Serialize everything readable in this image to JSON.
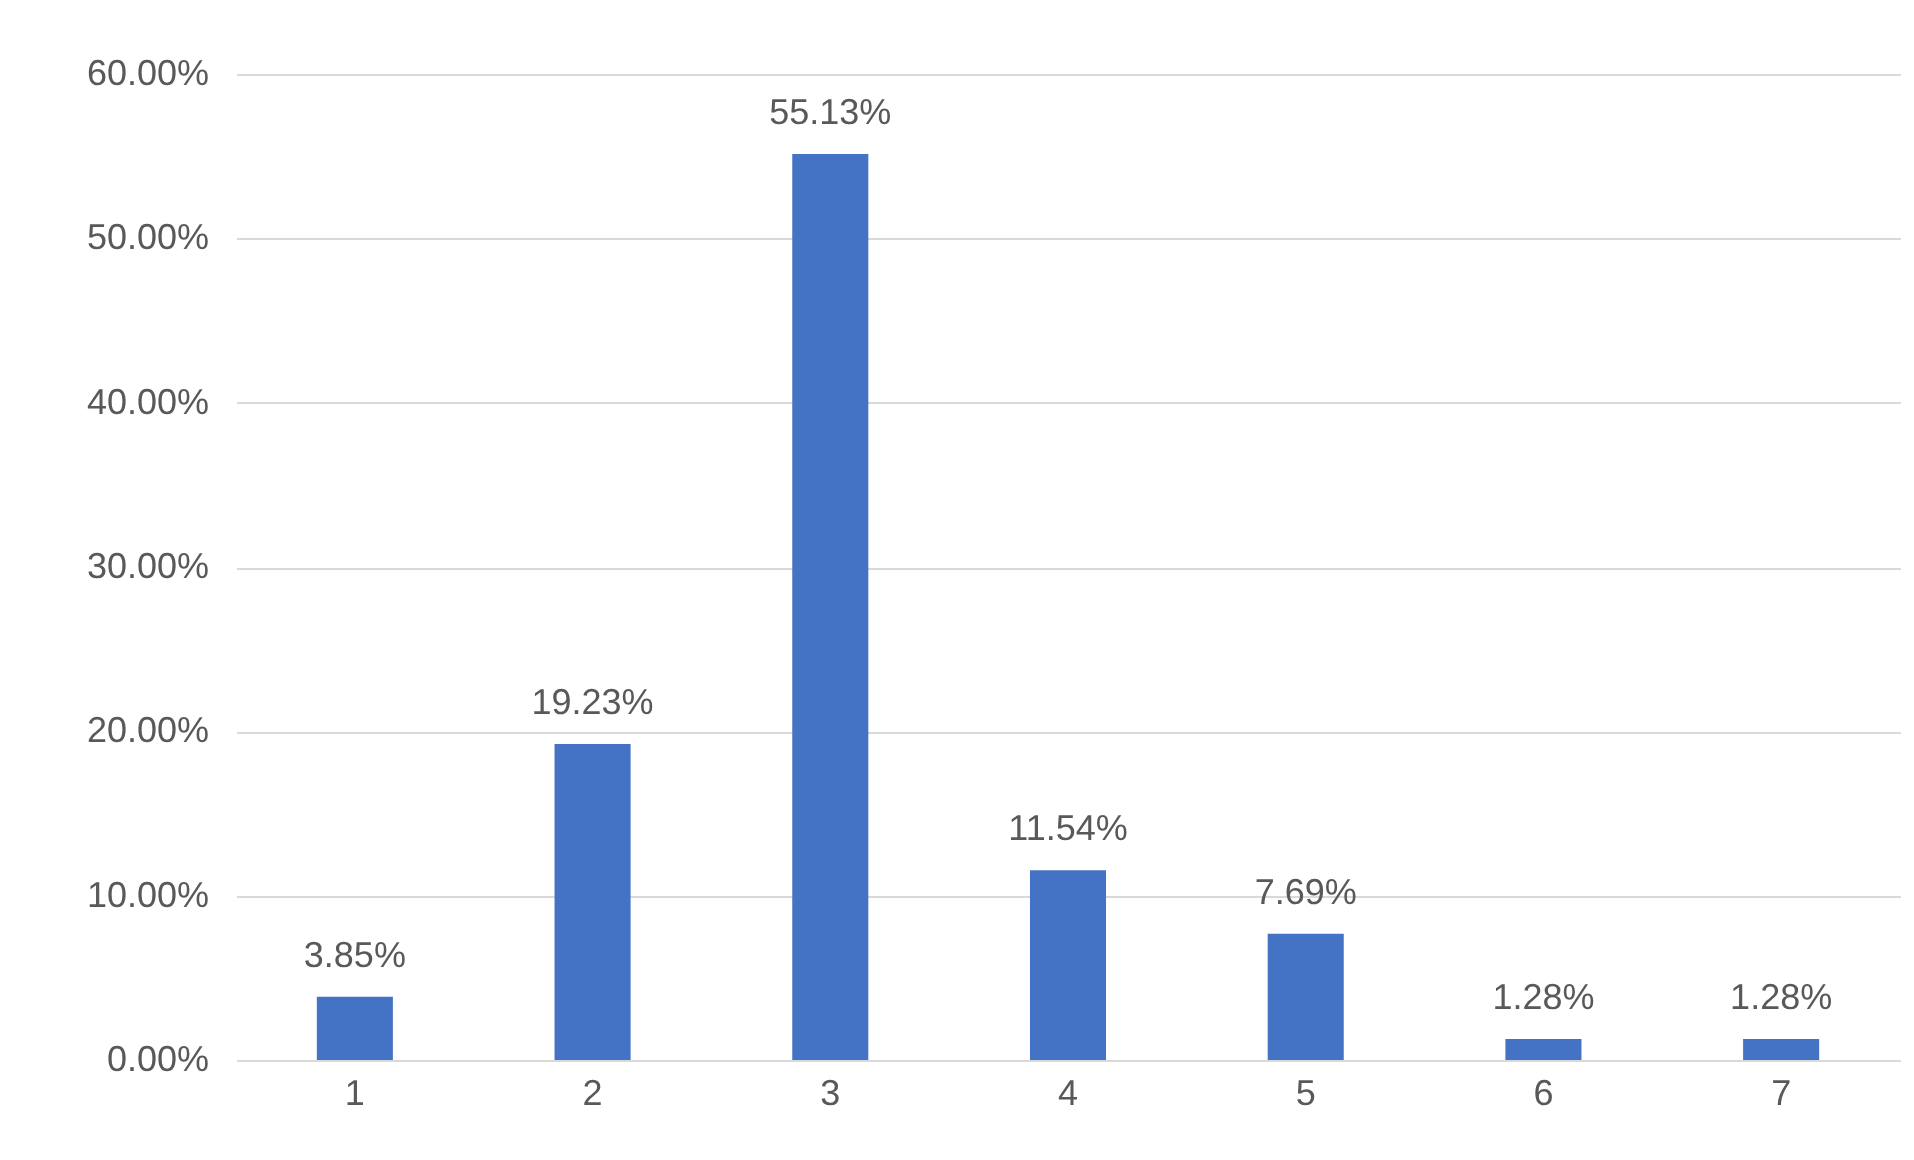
{
  "chart_data": {
    "type": "bar",
    "categories": [
      "1",
      "2",
      "3",
      "4",
      "5",
      "6",
      "7"
    ],
    "values": [
      3.85,
      19.23,
      55.13,
      11.54,
      7.69,
      1.28,
      1.28
    ],
    "value_labels": [
      "3.85%",
      "19.23%",
      "55.13%",
      "11.54%",
      "7.69%",
      "1.28%",
      "1.28%"
    ],
    "color": "#4472c4",
    "ylim": [
      0,
      60
    ],
    "yticks": [
      {
        "value": 0,
        "label": "0.00%"
      },
      {
        "value": 10,
        "label": "10.00%"
      },
      {
        "value": 20,
        "label": "20.00%"
      },
      {
        "value": 30,
        "label": "30.00%"
      },
      {
        "value": 40,
        "label": "40.00%"
      },
      {
        "value": 50,
        "label": "50.00%"
      },
      {
        "value": 60,
        "label": "60.00%"
      }
    ],
    "grid": "y"
  }
}
